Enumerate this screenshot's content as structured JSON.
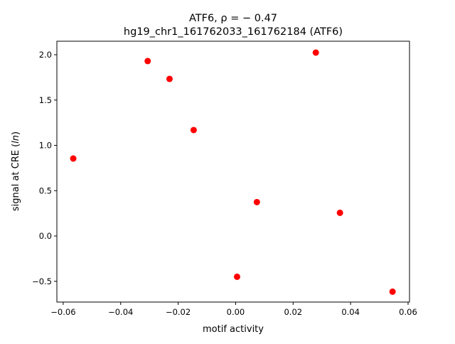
{
  "chart_data": {
    "type": "scatter",
    "title_line1": "ATF6, ρ = − 0.47",
    "title_line2": "hg19_chr1_161762033_161762184 (ATF6)",
    "xlabel": "motif activity",
    "ylabel_prefix": "signal at CRE (",
    "ylabel_italic": "ln",
    "ylabel_suffix": ")",
    "xlim": [
      -0.0622,
      0.0605
    ],
    "ylim": [
      -0.729,
      2.149
    ],
    "xticks": [
      -0.06,
      -0.04,
      -0.02,
      0.0,
      0.02,
      0.04,
      0.06
    ],
    "xtick_labels": [
      "−0.06",
      "−0.04",
      "−0.02",
      "0.00",
      "0.02",
      "0.04",
      "0.06"
    ],
    "yticks": [
      -0.5,
      0.0,
      0.5,
      1.0,
      1.5,
      2.0
    ],
    "ytick_labels": [
      "−0.5",
      "0.0",
      "0.5",
      "1.0",
      "1.5",
      "2.0"
    ],
    "grid": false,
    "marker_color": "#ff0000",
    "points": [
      {
        "x": -0.0565,
        "y": 0.855
      },
      {
        "x": -0.0306,
        "y": 1.93
      },
      {
        "x": -0.023,
        "y": 1.733
      },
      {
        "x": -0.0146,
        "y": 1.169
      },
      {
        "x": 0.0005,
        "y": -0.45
      },
      {
        "x": 0.0074,
        "y": 0.374
      },
      {
        "x": 0.0279,
        "y": 2.024
      },
      {
        "x": 0.0363,
        "y": 0.256
      },
      {
        "x": 0.0546,
        "y": -0.614
      }
    ]
  }
}
